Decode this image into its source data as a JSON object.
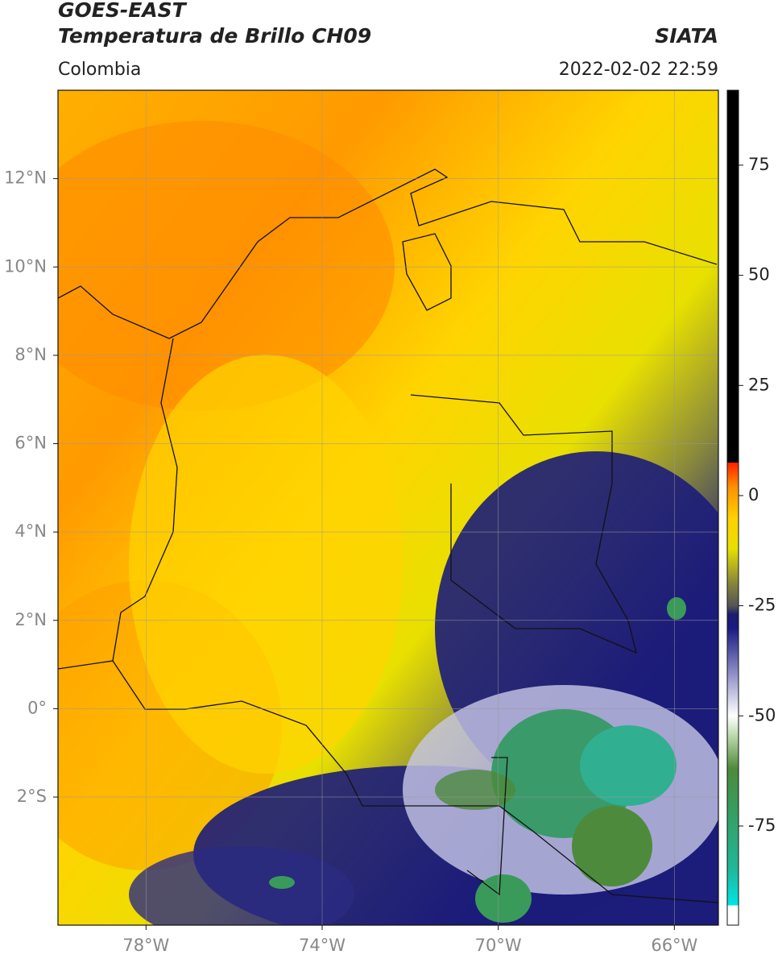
{
  "header": {
    "title": "GOES-EAST",
    "subtitle": "Temperatura de Brillo CH09",
    "source": "SIATA",
    "region": "Colombia",
    "datetime": "2022-02-02 22:59"
  },
  "map": {
    "xlim": [
      -80,
      -65
    ],
    "ylim": [
      -4.9,
      14
    ],
    "xticks": [
      {
        "value": -78,
        "label": "78°W"
      },
      {
        "value": -74,
        "label": "74°W"
      },
      {
        "value": -70,
        "label": "70°W"
      },
      {
        "value": -66,
        "label": "66°W"
      }
    ],
    "yticks": [
      {
        "value": 12,
        "label": "12°N"
      },
      {
        "value": 10,
        "label": "10°N"
      },
      {
        "value": 8,
        "label": "8°N"
      },
      {
        "value": 6,
        "label": "6°N"
      },
      {
        "value": 4,
        "label": "4°N"
      },
      {
        "value": 2,
        "label": "2°N"
      },
      {
        "value": 0,
        "label": "0°"
      },
      {
        "value": -2,
        "label": "2°S"
      }
    ],
    "grid": true
  },
  "colorbar": {
    "lim": [
      -97.5,
      92
    ],
    "ticks": [
      75,
      50,
      25,
      0,
      -25,
      -50,
      -75
    ],
    "colormap": [
      {
        "value": -97.5,
        "color": "#ffffff"
      },
      {
        "value": -93,
        "color": "#ffffff"
      },
      {
        "value": -93,
        "color": "#00e5e5"
      },
      {
        "value": -85,
        "color": "#20b89a"
      },
      {
        "value": -70,
        "color": "#3a9a5a"
      },
      {
        "value": -62,
        "color": "#4e8a3c"
      },
      {
        "value": -55,
        "color": "#b4d4a4"
      },
      {
        "value": -50,
        "color": "#ffffff"
      },
      {
        "value": -40,
        "color": "#8a8ac4"
      },
      {
        "value": -30,
        "color": "#1a1a82"
      },
      {
        "value": -27,
        "color": "#1c1c6e"
      },
      {
        "value": -25,
        "color": "#555555"
      },
      {
        "value": -20,
        "color": "#86843c"
      },
      {
        "value": -12,
        "color": "#e8e000"
      },
      {
        "value": -5,
        "color": "#ffd000"
      },
      {
        "value": 2,
        "color": "#ff9000"
      },
      {
        "value": 7.5,
        "color": "#ff2000"
      },
      {
        "value": 7.5,
        "color": "#000000"
      },
      {
        "value": 92,
        "color": "#000000"
      }
    ]
  }
}
